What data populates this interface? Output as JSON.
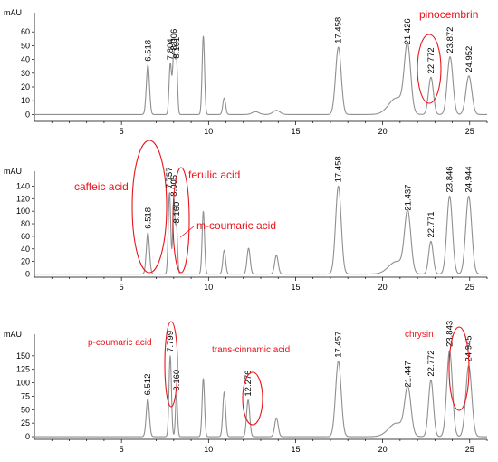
{
  "chart_data": [
    {
      "type": "line",
      "ylabel": "mAU",
      "xlim": [
        0,
        26
      ],
      "ylim": [
        -5,
        70
      ],
      "xticks": [
        5,
        10,
        15,
        20,
        25
      ],
      "yticks": [
        0,
        10,
        20,
        30,
        40,
        50,
        60
      ],
      "baseline": 0,
      "peaks": [
        {
          "x": 6.518,
          "y": 36,
          "w": 0.09,
          "label": "6.518"
        },
        {
          "x": 7.804,
          "y": 37,
          "w": 0.07,
          "label": "7.804"
        },
        {
          "x": 8.006,
          "y": 44,
          "w": 0.07,
          "label": "8.006"
        },
        {
          "x": 8.161,
          "y": 38,
          "w": 0.06,
          "label": "8.161"
        },
        {
          "x": 9.7,
          "y": 57,
          "w": 0.07,
          "label": ""
        },
        {
          "x": 10.9,
          "y": 12,
          "w": 0.08,
          "label": ""
        },
        {
          "x": 12.7,
          "y": 2,
          "w": 0.2,
          "label": ""
        },
        {
          "x": 13.9,
          "y": 3,
          "w": 0.2,
          "label": ""
        },
        {
          "x": 17.458,
          "y": 49,
          "w": 0.16,
          "label": "17.458"
        },
        {
          "x": 20.8,
          "y": 12,
          "w": 0.45,
          "label": ""
        },
        {
          "x": 21.426,
          "y": 48,
          "w": 0.18,
          "label": "21.426"
        },
        {
          "x": 22.772,
          "y": 27,
          "w": 0.14,
          "label": "22.772"
        },
        {
          "x": 23.872,
          "y": 42,
          "w": 0.16,
          "label": "23.872"
        },
        {
          "x": 24.952,
          "y": 28,
          "w": 0.17,
          "label": "24.952"
        }
      ],
      "annotations": [
        {
          "text": "pinocembrin",
          "kind": "label"
        },
        {
          "circled": "22.772",
          "kind": "ellipse"
        }
      ]
    },
    {
      "type": "line",
      "ylabel": "mAU",
      "xlim": [
        0,
        26
      ],
      "ylim": [
        -5,
        155
      ],
      "xticks": [
        5,
        10,
        15,
        20,
        25
      ],
      "yticks": [
        0,
        20,
        40,
        60,
        80,
        100,
        120,
        140
      ],
      "baseline": 0,
      "peaks": [
        {
          "x": 6.518,
          "y": 66,
          "w": 0.09,
          "label": "6.518"
        },
        {
          "x": 7.757,
          "y": 130,
          "w": 0.07,
          "label": "7.757"
        },
        {
          "x": 8.005,
          "y": 118,
          "w": 0.06,
          "label": "8.005"
        },
        {
          "x": 8.16,
          "y": 75,
          "w": 0.06,
          "label": "8.160"
        },
        {
          "x": 9.7,
          "y": 100,
          "w": 0.07,
          "label": ""
        },
        {
          "x": 10.9,
          "y": 38,
          "w": 0.08,
          "label": ""
        },
        {
          "x": 12.3,
          "y": 41,
          "w": 0.09,
          "label": ""
        },
        {
          "x": 13.9,
          "y": 30,
          "w": 0.1,
          "label": ""
        },
        {
          "x": 17.458,
          "y": 140,
          "w": 0.16,
          "label": "17.458"
        },
        {
          "x": 20.8,
          "y": 20,
          "w": 0.45,
          "label": ""
        },
        {
          "x": 21.437,
          "y": 95,
          "w": 0.18,
          "label": "21.437"
        },
        {
          "x": 22.771,
          "y": 52,
          "w": 0.13,
          "label": "22.771"
        },
        {
          "x": 23.846,
          "y": 124,
          "w": 0.16,
          "label": "23.846"
        },
        {
          "x": 24.944,
          "y": 124,
          "w": 0.17,
          "label": "24.944"
        }
      ],
      "annotations": [
        {
          "text": "caffeic acid",
          "kind": "label"
        },
        {
          "text": "ferulic acid",
          "kind": "label"
        },
        {
          "text": "m-coumaric acid",
          "kind": "label"
        },
        {
          "circled": "6.518",
          "kind": "ellipse"
        },
        {
          "circled": "8.005",
          "kind": "ellipse"
        }
      ]
    },
    {
      "type": "line",
      "ylabel": "mAU",
      "xlim": [
        0,
        26
      ],
      "ylim": [
        -5,
        180
      ],
      "xticks": [
        5,
        10,
        15,
        20,
        25
      ],
      "yticks": [
        0,
        25,
        50,
        75,
        100,
        125,
        150
      ],
      "baseline": 0,
      "peaks": [
        {
          "x": 6.512,
          "y": 70,
          "w": 0.09,
          "label": "6.512"
        },
        {
          "x": 7.799,
          "y": 150,
          "w": 0.07,
          "label": "7.799"
        },
        {
          "x": 8.16,
          "y": 78,
          "w": 0.06,
          "label": "8.160"
        },
        {
          "x": 9.7,
          "y": 108,
          "w": 0.07,
          "label": ""
        },
        {
          "x": 10.9,
          "y": 83,
          "w": 0.08,
          "label": ""
        },
        {
          "x": 12.276,
          "y": 68,
          "w": 0.09,
          "label": "12.276"
        },
        {
          "x": 13.9,
          "y": 35,
          "w": 0.1,
          "label": ""
        },
        {
          "x": 17.457,
          "y": 140,
          "w": 0.16,
          "label": "17.457"
        },
        {
          "x": 20.8,
          "y": 25,
          "w": 0.45,
          "label": ""
        },
        {
          "x": 21.447,
          "y": 85,
          "w": 0.18,
          "label": "21.447"
        },
        {
          "x": 22.772,
          "y": 105,
          "w": 0.14,
          "label": "22.772"
        },
        {
          "x": 23.843,
          "y": 160,
          "w": 0.16,
          "label": "23.843"
        },
        {
          "x": 24.945,
          "y": 132,
          "w": 0.17,
          "label": "24.945"
        }
      ],
      "annotations": [
        {
          "text": "p-coumaric acid",
          "kind": "label"
        },
        {
          "text": "trans-cinnamic acid",
          "kind": "label"
        },
        {
          "text": "chrysin",
          "kind": "label"
        },
        {
          "circled": "7.799",
          "kind": "ellipse"
        },
        {
          "circled": "12.276",
          "kind": "ellipse"
        },
        {
          "circled": "23.843",
          "kind": "ellipse"
        }
      ]
    }
  ],
  "colors": {
    "trace": "#8f8f8f",
    "annotation": "#e8141b",
    "axis": "#000000"
  }
}
